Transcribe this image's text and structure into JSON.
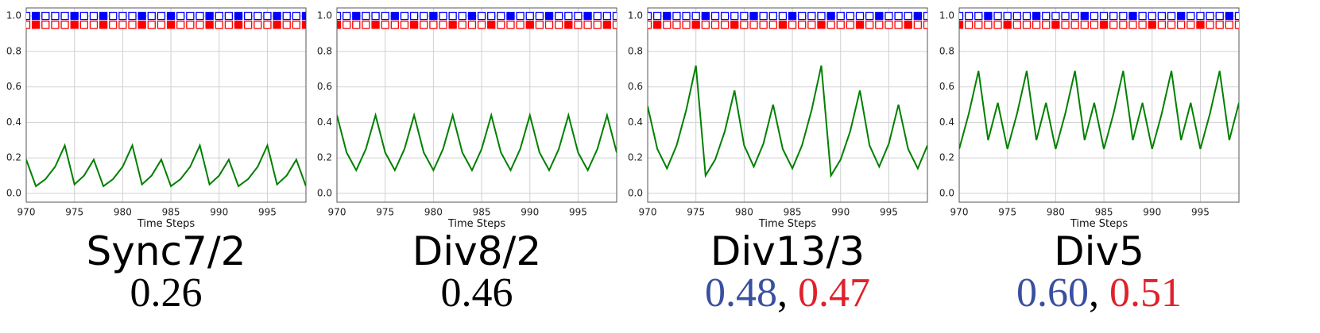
{
  "chart_data": [
    {
      "type": "line",
      "title": "Sync7/2",
      "scores": [
        {
          "text": "0.26",
          "color": "#000000"
        }
      ],
      "xlabel": "Time Steps",
      "x": [
        970,
        971,
        972,
        973,
        974,
        975,
        976,
        977,
        978,
        979,
        980,
        981,
        982,
        983,
        984,
        985,
        986,
        987,
        988,
        989,
        990,
        991,
        992,
        993,
        994,
        995,
        996,
        997,
        998,
        999
      ],
      "series": [
        {
          "color": "#008000",
          "values": [
            0.19,
            0.04,
            0.08,
            0.15,
            0.27,
            0.05,
            0.1,
            0.19,
            0.04,
            0.08,
            0.15,
            0.27,
            0.05,
            0.1,
            0.19,
            0.04,
            0.08,
            0.15,
            0.27,
            0.05,
            0.1,
            0.19,
            0.04,
            0.08,
            0.15,
            0.27,
            0.05,
            0.1,
            0.19,
            0.04
          ]
        }
      ],
      "marker_rows": [
        {
          "color": "#0000ff",
          "y": 1.0,
          "filled": [
            0,
            1,
            0,
            0,
            0,
            1,
            0,
            0,
            1,
            0,
            0,
            0,
            1,
            0,
            0,
            1,
            0,
            0,
            0,
            1,
            0,
            0,
            1,
            0,
            0,
            0,
            1,
            0,
            0,
            1
          ]
        },
        {
          "color": "#ff0000",
          "y": 0.95,
          "filled": [
            0,
            1,
            0,
            0,
            0,
            1,
            0,
            0,
            1,
            0,
            0,
            0,
            1,
            0,
            0,
            1,
            0,
            0,
            0,
            1,
            0,
            0,
            1,
            0,
            0,
            0,
            1,
            0,
            0,
            1
          ]
        }
      ],
      "xlim": [
        970,
        999
      ],
      "xticks": [
        970,
        975,
        980,
        985,
        990,
        995
      ],
      "ylim": [
        -0.05,
        1.045
      ],
      "yticks": [
        {
          "value": 0,
          "label": "0.0"
        },
        {
          "value": 0.2,
          "label": "0.2"
        },
        {
          "value": 0.4,
          "label": "0.4"
        },
        {
          "value": 0.6,
          "label": "0.6"
        },
        {
          "value": 0.8,
          "label": "0.8"
        },
        {
          "value": 1,
          "label": "1.0"
        }
      ],
      "grid": true
    },
    {
      "type": "line",
      "title": "Div8/2",
      "scores": [
        {
          "text": "0.46",
          "color": "#000000"
        }
      ],
      "xlabel": "Time Steps",
      "x": [
        970,
        971,
        972,
        973,
        974,
        975,
        976,
        977,
        978,
        979,
        980,
        981,
        982,
        983,
        984,
        985,
        986,
        987,
        988,
        989,
        990,
        991,
        992,
        993,
        994,
        995,
        996,
        997,
        998,
        999
      ],
      "series": [
        {
          "color": "#008000",
          "values": [
            0.44,
            0.23,
            0.13,
            0.25,
            0.44,
            0.23,
            0.13,
            0.25,
            0.44,
            0.23,
            0.13,
            0.25,
            0.44,
            0.23,
            0.13,
            0.25,
            0.44,
            0.23,
            0.13,
            0.25,
            0.44,
            0.23,
            0.13,
            0.25,
            0.44,
            0.23,
            0.13,
            0.25,
            0.44,
            0.23
          ]
        }
      ],
      "marker_rows": [
        {
          "color": "#0000ff",
          "y": 1.0,
          "filled": [
            0,
            0,
            1,
            0,
            0,
            0,
            1,
            0,
            0,
            0,
            1,
            0,
            0,
            0,
            1,
            0,
            0,
            0,
            1,
            0,
            0,
            0,
            1,
            0,
            0,
            0,
            1,
            0,
            0,
            0
          ]
        },
        {
          "color": "#ff0000",
          "y": 0.95,
          "filled": [
            1,
            0,
            0,
            0,
            1,
            0,
            0,
            0,
            1,
            0,
            0,
            0,
            1,
            0,
            0,
            0,
            1,
            0,
            0,
            0,
            1,
            0,
            0,
            0,
            1,
            0,
            0,
            0,
            1,
            0
          ]
        }
      ],
      "xlim": [
        970,
        999
      ],
      "xticks": [
        970,
        975,
        980,
        985,
        990,
        995
      ],
      "ylim": [
        -0.05,
        1.045
      ],
      "yticks": [
        {
          "value": 0,
          "label": "0.0"
        },
        {
          "value": 0.2,
          "label": "0.2"
        },
        {
          "value": 0.4,
          "label": "0.4"
        },
        {
          "value": 0.6,
          "label": "0.6"
        },
        {
          "value": 0.8,
          "label": "0.8"
        },
        {
          "value": 1,
          "label": "1.0"
        }
      ],
      "grid": true
    },
    {
      "type": "line",
      "title": "Div13/3",
      "scores": [
        {
          "text": "0.48",
          "color": "#3a4fa0"
        },
        {
          "text": "0.47",
          "color": "#e0212b"
        }
      ],
      "score_separator": ",",
      "xlabel": "Time Steps",
      "x": [
        970,
        971,
        972,
        973,
        974,
        975,
        976,
        977,
        978,
        979,
        980,
        981,
        982,
        983,
        984,
        985,
        986,
        987,
        988,
        989,
        990,
        991,
        992,
        993,
        994,
        995,
        996,
        997,
        998,
        999
      ],
      "series": [
        {
          "color": "#008000",
          "values": [
            0.49,
            0.25,
            0.14,
            0.27,
            0.47,
            0.72,
            0.1,
            0.19,
            0.35,
            0.58,
            0.27,
            0.15,
            0.28,
            0.5,
            0.25,
            0.14,
            0.27,
            0.47,
            0.72,
            0.1,
            0.19,
            0.35,
            0.58,
            0.27,
            0.15,
            0.28,
            0.5,
            0.25,
            0.14,
            0.27
          ]
        }
      ],
      "marker_rows": [
        {
          "color": "#0000ff",
          "y": 1.0,
          "filled": [
            0,
            0,
            1,
            0,
            0,
            0,
            1,
            0,
            0,
            0,
            0,
            1,
            0,
            0,
            0,
            1,
            0,
            0,
            0,
            1,
            0,
            0,
            0,
            0,
            1,
            0,
            0,
            0,
            1,
            0
          ]
        },
        {
          "color": "#ff0000",
          "y": 0.95,
          "filled": [
            0,
            1,
            0,
            0,
            0,
            1,
            0,
            0,
            0,
            1,
            0,
            0,
            0,
            0,
            1,
            0,
            0,
            0,
            1,
            0,
            0,
            0,
            1,
            0,
            0,
            0,
            0,
            1,
            0,
            0
          ]
        }
      ],
      "xlim": [
        970,
        999
      ],
      "xticks": [
        970,
        975,
        980,
        985,
        990,
        995
      ],
      "ylim": [
        -0.05,
        1.045
      ],
      "yticks": [
        {
          "value": 0,
          "label": "0.0"
        },
        {
          "value": 0.2,
          "label": "0.2"
        },
        {
          "value": 0.4,
          "label": "0.4"
        },
        {
          "value": 0.6,
          "label": "0.6"
        },
        {
          "value": 0.8,
          "label": "0.8"
        },
        {
          "value": 1,
          "label": "1.0"
        }
      ],
      "grid": true
    },
    {
      "type": "line",
      "title": "Div5",
      "scores": [
        {
          "text": "0.60",
          "color": "#3a4fa0"
        },
        {
          "text": "0.51",
          "color": "#e0212b"
        }
      ],
      "score_separator": ",",
      "xlabel": "Time Steps",
      "x": [
        970,
        971,
        972,
        973,
        974,
        975,
        976,
        977,
        978,
        979,
        980,
        981,
        982,
        983,
        984,
        985,
        986,
        987,
        988,
        989,
        990,
        991,
        992,
        993,
        994,
        995,
        996,
        997,
        998,
        999
      ],
      "series": [
        {
          "color": "#008000",
          "values": [
            0.25,
            0.45,
            0.69,
            0.3,
            0.51,
            0.25,
            0.45,
            0.69,
            0.3,
            0.51,
            0.25,
            0.45,
            0.69,
            0.3,
            0.51,
            0.25,
            0.45,
            0.69,
            0.3,
            0.51,
            0.25,
            0.45,
            0.69,
            0.3,
            0.51,
            0.25,
            0.45,
            0.69,
            0.3,
            0.51
          ]
        }
      ],
      "marker_rows": [
        {
          "color": "#0000ff",
          "y": 1.0,
          "filled": [
            0,
            0,
            0,
            1,
            0,
            0,
            0,
            0,
            1,
            0,
            0,
            0,
            0,
            1,
            0,
            0,
            0,
            0,
            1,
            0,
            0,
            0,
            0,
            1,
            0,
            0,
            0,
            0,
            1,
            0
          ]
        },
        {
          "color": "#ff0000",
          "y": 0.95,
          "filled": [
            1,
            0,
            0,
            0,
            0,
            1,
            0,
            0,
            0,
            0,
            1,
            0,
            0,
            0,
            0,
            1,
            0,
            0,
            0,
            0,
            1,
            0,
            0,
            0,
            0,
            1,
            0,
            0,
            0,
            0
          ]
        }
      ],
      "xlim": [
        970,
        999
      ],
      "xticks": [
        970,
        975,
        980,
        985,
        990,
        995
      ],
      "ylim": [
        -0.05,
        1.045
      ],
      "yticks": [
        {
          "value": 0,
          "label": "0.0"
        },
        {
          "value": 0.2,
          "label": "0.2"
        },
        {
          "value": 0.4,
          "label": "0.4"
        },
        {
          "value": 0.6,
          "label": "0.6"
        },
        {
          "value": 0.8,
          "label": "0.8"
        },
        {
          "value": 1,
          "label": "1.0"
        }
      ],
      "grid": true
    }
  ]
}
